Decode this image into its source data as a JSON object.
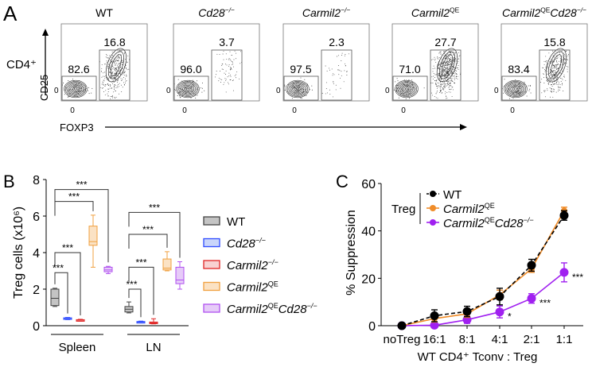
{
  "panels": {
    "a": "A",
    "b": "B",
    "c": "C"
  },
  "genotypes": [
    {
      "key": "WT",
      "segments": [
        {
          "t": "WT"
        }
      ]
    },
    {
      "key": "Cd28KO",
      "segments": [
        {
          "t": "Cd28",
          "i": true
        },
        {
          "t": "−/−",
          "i": true,
          "sup": true
        }
      ]
    },
    {
      "key": "Carmil2KO",
      "segments": [
        {
          "t": "Carmil2",
          "i": true
        },
        {
          "t": "−/−",
          "i": true,
          "sup": true
        }
      ]
    },
    {
      "key": "Carmil2QE",
      "segments": [
        {
          "t": "Carmil2",
          "i": true
        },
        {
          "t": "QE",
          "sup": true
        }
      ]
    },
    {
      "key": "Carmil2QE_Cd28KO",
      "segments": [
        {
          "t": "Carmil2",
          "i": true
        },
        {
          "t": "QE",
          "sup": true
        },
        {
          "t": "Cd28",
          "i": true
        },
        {
          "t": "−/−",
          "i": true,
          "sup": true
        }
      ]
    }
  ],
  "colors": {
    "WT": {
      "stroke": "#444444",
      "fill": "#c4c4c4"
    },
    "Cd28KO": {
      "stroke": "#2f4cff",
      "fill": "#c9d5fa"
    },
    "Carmil2KO": {
      "stroke": "#e02626",
      "fill": "#f8d2d2"
    },
    "Carmil2QE": {
      "stroke": "#f0a040",
      "fill": "#fbe2c4"
    },
    "Carmil2QE_Cd28KO": {
      "stroke": "#b050f0",
      "fill": "#e6cbf8"
    },
    "C_WT": "#000000",
    "C_QE": "#f08c28",
    "C_DKO": "#a020f0"
  },
  "chart_data": [
    {
      "type": "flow-cytometry",
      "gate_label": "CD4⁺",
      "ylabel": "CD25",
      "xlabel": "FOXP3",
      "tick_zero": "0",
      "plots": [
        {
          "genotype": "WT",
          "foxp3_neg": "82.6",
          "treg": "16.8"
        },
        {
          "genotype": "Cd28KO",
          "foxp3_neg": "96.0",
          "treg": "3.7"
        },
        {
          "genotype": "Carmil2KO",
          "foxp3_neg": "97.5",
          "treg": "2.3"
        },
        {
          "genotype": "Carmil2QE",
          "foxp3_neg": "71.0",
          "treg": "27.7"
        },
        {
          "genotype": "Carmil2QE_Cd28KO",
          "foxp3_neg": "83.4",
          "treg": "15.8"
        }
      ]
    },
    {
      "type": "box",
      "ylabel": "Treg cells (x10⁶)",
      "ylim": [
        0,
        8
      ],
      "yticks": [
        "0",
        "2",
        "4",
        "6",
        "8"
      ],
      "groups": [
        {
          "name": "Spleen",
          "boxes": [
            {
              "genotype": "WT",
              "min": 1.05,
              "q1": 1.1,
              "median": 1.5,
              "q3": 2.0,
              "max": 2.05
            },
            {
              "genotype": "Cd28KO",
              "min": 0.33,
              "q1": 0.37,
              "median": 0.4,
              "q3": 0.43,
              "max": 0.45
            },
            {
              "genotype": "Carmil2KO",
              "min": 0.25,
              "q1": 0.28,
              "median": 0.3,
              "q3": 0.33,
              "max": 0.35
            },
            {
              "genotype": "Carmil2QE",
              "min": 3.2,
              "q1": 4.4,
              "median": 4.6,
              "q3": 5.45,
              "max": 6.05
            },
            {
              "genotype": "Carmil2QE_Cd28KO",
              "min": 2.85,
              "q1": 2.95,
              "median": 3.05,
              "q3": 3.2,
              "max": 3.25
            }
          ],
          "significance": [
            {
              "from": 0,
              "to": 1,
              "level": 2.9,
              "label": "***"
            },
            {
              "from": 0,
              "to": 2,
              "level": 4.0,
              "label": "***"
            },
            {
              "from": 0,
              "to": 3,
              "level": 6.8,
              "label": "***"
            },
            {
              "from": 0,
              "to": 4,
              "level": 7.45,
              "label": "***"
            }
          ]
        },
        {
          "name": "LN",
          "boxes": [
            {
              "genotype": "WT",
              "min": 0.7,
              "q1": 0.75,
              "median": 0.9,
              "q3": 1.05,
              "max": 1.3
            },
            {
              "genotype": "Cd28KO",
              "min": 0.15,
              "q1": 0.17,
              "median": 0.2,
              "q3": 0.23,
              "max": 0.25
            },
            {
              "genotype": "Carmil2KO",
              "min": 0.1,
              "q1": 0.12,
              "median": 0.15,
              "q3": 0.2,
              "max": 0.38
            },
            {
              "genotype": "Carmil2QE",
              "min": 3.0,
              "q1": 3.05,
              "median": 3.15,
              "q3": 3.65,
              "max": 4.05
            },
            {
              "genotype": "Carmil2QE_Cd28KO",
              "min": 2.0,
              "q1": 2.3,
              "median": 2.5,
              "q3": 3.2,
              "max": 3.5
            }
          ],
          "significance": [
            {
              "from": 0,
              "to": 1,
              "level": 2.0,
              "label": "***"
            },
            {
              "from": 0,
              "to": 2,
              "level": 3.2,
              "label": "***"
            },
            {
              "from": 0,
              "to": 3,
              "level": 5.0,
              "label": "***"
            },
            {
              "from": 0,
              "to": 4,
              "level": 6.2,
              "label": "***"
            }
          ]
        }
      ],
      "legend_placement": "right"
    },
    {
      "type": "line",
      "ylabel": "% Suppression",
      "xlabel": "WT CD4⁺ Tconv : Treg",
      "ylim": [
        0,
        60
      ],
      "yticks": [
        "0",
        "20",
        "40",
        "60"
      ],
      "categories": [
        "noTreg",
        "16:1",
        "8:1",
        "4:1",
        "2:1",
        "1:1"
      ],
      "legend_title": "Treg",
      "legend_placement": "top-left",
      "series": [
        {
          "genotype": "WT",
          "colorKey": "C_WT",
          "dashed": true,
          "values": [
            0,
            4.2,
            6.0,
            12.3,
            25.5,
            46.5
          ],
          "errors": [
            0.5,
            2.5,
            2.2,
            3.5,
            2.5,
            2.0
          ]
        },
        {
          "genotype": "Carmil2QE",
          "colorKey": "C_QE",
          "dashed": false,
          "values": [
            0,
            3.0,
            5.0,
            13.0,
            24.0,
            48.5
          ],
          "errors": [
            0.5,
            1.5,
            1.5,
            2.0,
            1.5,
            1.5
          ]
        },
        {
          "genotype": "Carmil2QE_Cd28KO",
          "colorKey": "C_DKO",
          "dashed": false,
          "values": [
            0,
            0.2,
            2.5,
            5.8,
            11.5,
            22.5
          ],
          "errors": [
            0.3,
            0.5,
            1.5,
            2.5,
            2.0,
            4.0
          ],
          "significance": [
            "",
            "",
            "",
            "*",
            "***",
            "***"
          ]
        }
      ]
    }
  ]
}
